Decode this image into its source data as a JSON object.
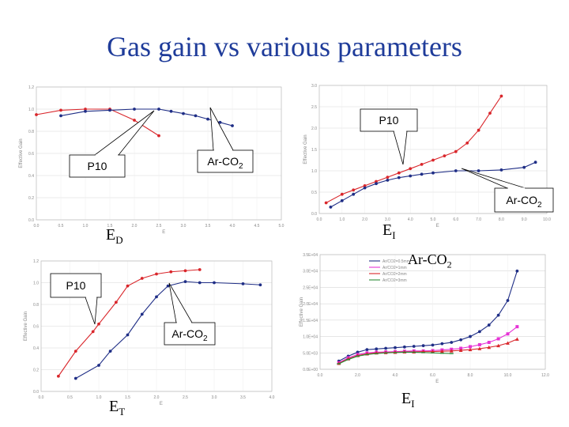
{
  "title": "Gas gain vs various parameters",
  "colors": {
    "p10": "#d9262b",
    "arco2": "#1f2e86",
    "title": "#1f3c9a",
    "magenta": "#e633d6",
    "green": "#2e8b3a"
  },
  "labels": {
    "ed": {
      "main": "E",
      "sub": "D"
    },
    "ei_top": {
      "main": "E",
      "sub": "I"
    },
    "et": {
      "main": "E",
      "sub": "T"
    },
    "ei_bottom": {
      "main": "E",
      "sub": "I"
    },
    "arco2_big": {
      "main": "Ar-CO",
      "sub": "2"
    }
  },
  "chart_data": [
    {
      "type": "line",
      "xlabel": "E",
      "ylabel": "Effective Gain",
      "xlim": [
        0,
        5
      ],
      "ylim": [
        0,
        1.2
      ],
      "xticks": [
        "0.0",
        "0.5",
        "1.0",
        "1.5",
        "2.0",
        "2.5",
        "3.0",
        "3.5",
        "4.0",
        "4.5",
        "5.0"
      ],
      "yticks": [
        "0.0",
        "0.2",
        "0.4",
        "0.6",
        "0.8",
        "1.0",
        "1.2"
      ],
      "series": [
        {
          "color": "p10",
          "x": [
            0.0,
            0.5,
            1.0,
            1.5,
            2.0,
            2.5
          ],
          "y": [
            0.95,
            0.99,
            1.0,
            1.0,
            0.9,
            0.76
          ]
        },
        {
          "color": "arco2",
          "x": [
            0.5,
            1.0,
            1.5,
            2.0,
            2.5,
            2.75,
            3.0,
            3.25,
            3.5,
            3.75,
            4.0
          ],
          "y": [
            0.94,
            0.98,
            0.99,
            1.0,
            1.0,
            0.98,
            0.96,
            0.94,
            0.91,
            0.88,
            0.85
          ]
        }
      ],
      "callouts": [
        {
          "main": "P10",
          "sub": ""
        },
        {
          "main": "Ar-CO",
          "sub": "2"
        }
      ]
    },
    {
      "type": "line",
      "xlabel": "E",
      "ylabel": "Effective Gain",
      "xlim": [
        0,
        10
      ],
      "ylim": [
        0,
        3
      ],
      "xticks": [
        "0.0",
        "1.0",
        "2.0",
        "3.0",
        "4.0",
        "5.0",
        "6.0",
        "7.0",
        "8.0",
        "9.0",
        "10.0"
      ],
      "yticks": [
        "0.0",
        "0.5",
        "1.0",
        "1.5",
        "2.0",
        "2.5",
        "3.0"
      ],
      "series": [
        {
          "color": "p10",
          "x": [
            0.3,
            1.0,
            1.5,
            2.0,
            2.5,
            3.0,
            3.5,
            4.0,
            4.5,
            5.0,
            5.5,
            6.0,
            6.5,
            7.0,
            7.5,
            8.0
          ],
          "y": [
            0.25,
            0.45,
            0.55,
            0.65,
            0.75,
            0.85,
            0.95,
            1.05,
            1.15,
            1.25,
            1.35,
            1.45,
            1.65,
            1.95,
            2.35,
            2.75
          ]
        },
        {
          "color": "arco2",
          "x": [
            0.5,
            1.0,
            1.5,
            2.0,
            2.5,
            3.0,
            3.5,
            4.0,
            4.5,
            5.0,
            6.0,
            7.0,
            8.0,
            9.0,
            9.5
          ],
          "y": [
            0.15,
            0.3,
            0.45,
            0.6,
            0.7,
            0.78,
            0.84,
            0.88,
            0.92,
            0.95,
            1.0,
            1.0,
            1.02,
            1.08,
            1.2
          ]
        }
      ],
      "callouts": [
        {
          "main": "P10",
          "sub": ""
        },
        {
          "main": "Ar-CO",
          "sub": "2"
        }
      ]
    },
    {
      "type": "line",
      "xlabel": "E",
      "ylabel": "Effective Gain",
      "xlim": [
        0,
        4
      ],
      "ylim": [
        0,
        1.2
      ],
      "xticks": [
        "0.0",
        "0.5",
        "1.0",
        "1.5",
        "2.0",
        "2.5",
        "3.0",
        "3.5",
        "4.0"
      ],
      "yticks": [
        "0.0",
        "0.2",
        "0.4",
        "0.6",
        "0.8",
        "1.0",
        "1.2"
      ],
      "series": [
        {
          "color": "p10",
          "x": [
            0.3,
            0.6,
            0.9,
            1.0,
            1.3,
            1.5,
            1.75,
            2.0,
            2.25,
            2.5,
            2.75
          ],
          "y": [
            0.14,
            0.37,
            0.55,
            0.62,
            0.82,
            0.97,
            1.04,
            1.08,
            1.1,
            1.11,
            1.12
          ]
        },
        {
          "color": "arco2",
          "x": [
            0.6,
            1.0,
            1.2,
            1.5,
            1.75,
            2.0,
            2.2,
            2.5,
            2.75,
            3.0,
            3.5,
            3.8
          ],
          "y": [
            0.12,
            0.24,
            0.37,
            0.52,
            0.71,
            0.87,
            0.97,
            1.01,
            1.0,
            1.0,
            0.99,
            0.98
          ]
        }
      ],
      "callouts": [
        {
          "main": "P10",
          "sub": ""
        },
        {
          "main": "Ar-CO",
          "sub": "2"
        }
      ]
    },
    {
      "type": "line",
      "xlabel": "E",
      "ylabel": "Effective Gain",
      "xlim": [
        0,
        12
      ],
      "ylim": [
        0,
        35000
      ],
      "xticks": [
        "0.0",
        "2.0",
        "4.0",
        "6.0",
        "8.0",
        "10.0",
        "12.0"
      ],
      "yticks": [
        "0.0E+00",
        "5.0E+03",
        "1.0E+04",
        "1.5E+04",
        "2.0E+04",
        "2.5E+04",
        "3.0E+04",
        "3.5E+04"
      ],
      "legend": "top-left",
      "series": [
        {
          "name": "Ar/CO2=0.5mm",
          "color": "arco2",
          "x": [
            1.0,
            1.5,
            2.0,
            2.5,
            3.0,
            3.5,
            4.0,
            4.5,
            5.0,
            5.5,
            6.0,
            6.5,
            7.0,
            7.5,
            8.0,
            8.5,
            9.0,
            9.5,
            10.0,
            10.5
          ],
          "y": [
            2500,
            4000,
            5200,
            6000,
            6200,
            6400,
            6600,
            6800,
            7000,
            7200,
            7400,
            7800,
            8200,
            9000,
            10000,
            11500,
            13500,
            16500,
            21000,
            30000
          ]
        },
        {
          "name": "Ar/CO2=1mm",
          "color": "magenta",
          "x": [
            1.0,
            1.5,
            2.0,
            2.5,
            3.0,
            3.5,
            4.0,
            4.5,
            5.0,
            5.5,
            6.0,
            6.5,
            7.0,
            7.5,
            8.0,
            8.5,
            9.0,
            9.5,
            10.0,
            10.5
          ],
          "y": [
            2000,
            3500,
            4500,
            5000,
            5200,
            5300,
            5400,
            5500,
            5600,
            5600,
            5700,
            5900,
            6100,
            6400,
            6900,
            7500,
            8200,
            9300,
            10800,
            13000
          ]
        },
        {
          "name": "Ar/CO2=2mm",
          "color": "p10",
          "x": [
            1.0,
            1.5,
            2.0,
            2.5,
            3.0,
            3.5,
            4.0,
            4.5,
            5.0,
            5.5,
            6.0,
            6.5,
            7.0,
            7.5,
            8.0,
            8.5,
            9.0,
            9.5,
            10.0,
            10.5
          ],
          "y": [
            1800,
            3200,
            4200,
            4700,
            5000,
            5100,
            5200,
            5300,
            5300,
            5400,
            5400,
            5500,
            5600,
            5800,
            6000,
            6300,
            6700,
            7200,
            8000,
            9200
          ]
        },
        {
          "name": "Ar/CO2=3mm",
          "color": "green",
          "x": [
            1.0,
            1.5,
            2.0,
            2.5,
            3.0,
            3.5,
            4.0,
            4.5,
            5.0,
            5.5,
            6.0,
            6.5,
            7.0
          ],
          "y": [
            1700,
            3000,
            4000,
            4500,
            4800,
            5000,
            5100,
            5200,
            5200,
            5100,
            5000,
            4900,
            4800
          ]
        }
      ]
    }
  ]
}
